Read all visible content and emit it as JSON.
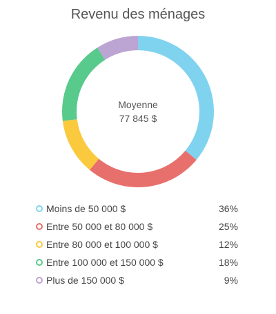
{
  "chart_data": {
    "type": "pie",
    "title": "Revenu des ménages",
    "center": {
      "label": "Moyenne",
      "value": "77 845 $"
    },
    "categories": [
      "Moins de 50 000 $",
      "Entre 50 000 et 80 000 $",
      "Entre 80 000 et 100 000 $",
      "Entre 100 000 et 150 000 $",
      "Plus de 150 000 $"
    ],
    "values": [
      36,
      25,
      12,
      18,
      9
    ],
    "value_labels": [
      "36%",
      "25%",
      "12%",
      "18%",
      "9%"
    ],
    "colors": [
      "#7fd3ef",
      "#e8706c",
      "#fbc93d",
      "#58ca8b",
      "#bca4d3"
    ],
    "legend_placement": "bottom"
  }
}
